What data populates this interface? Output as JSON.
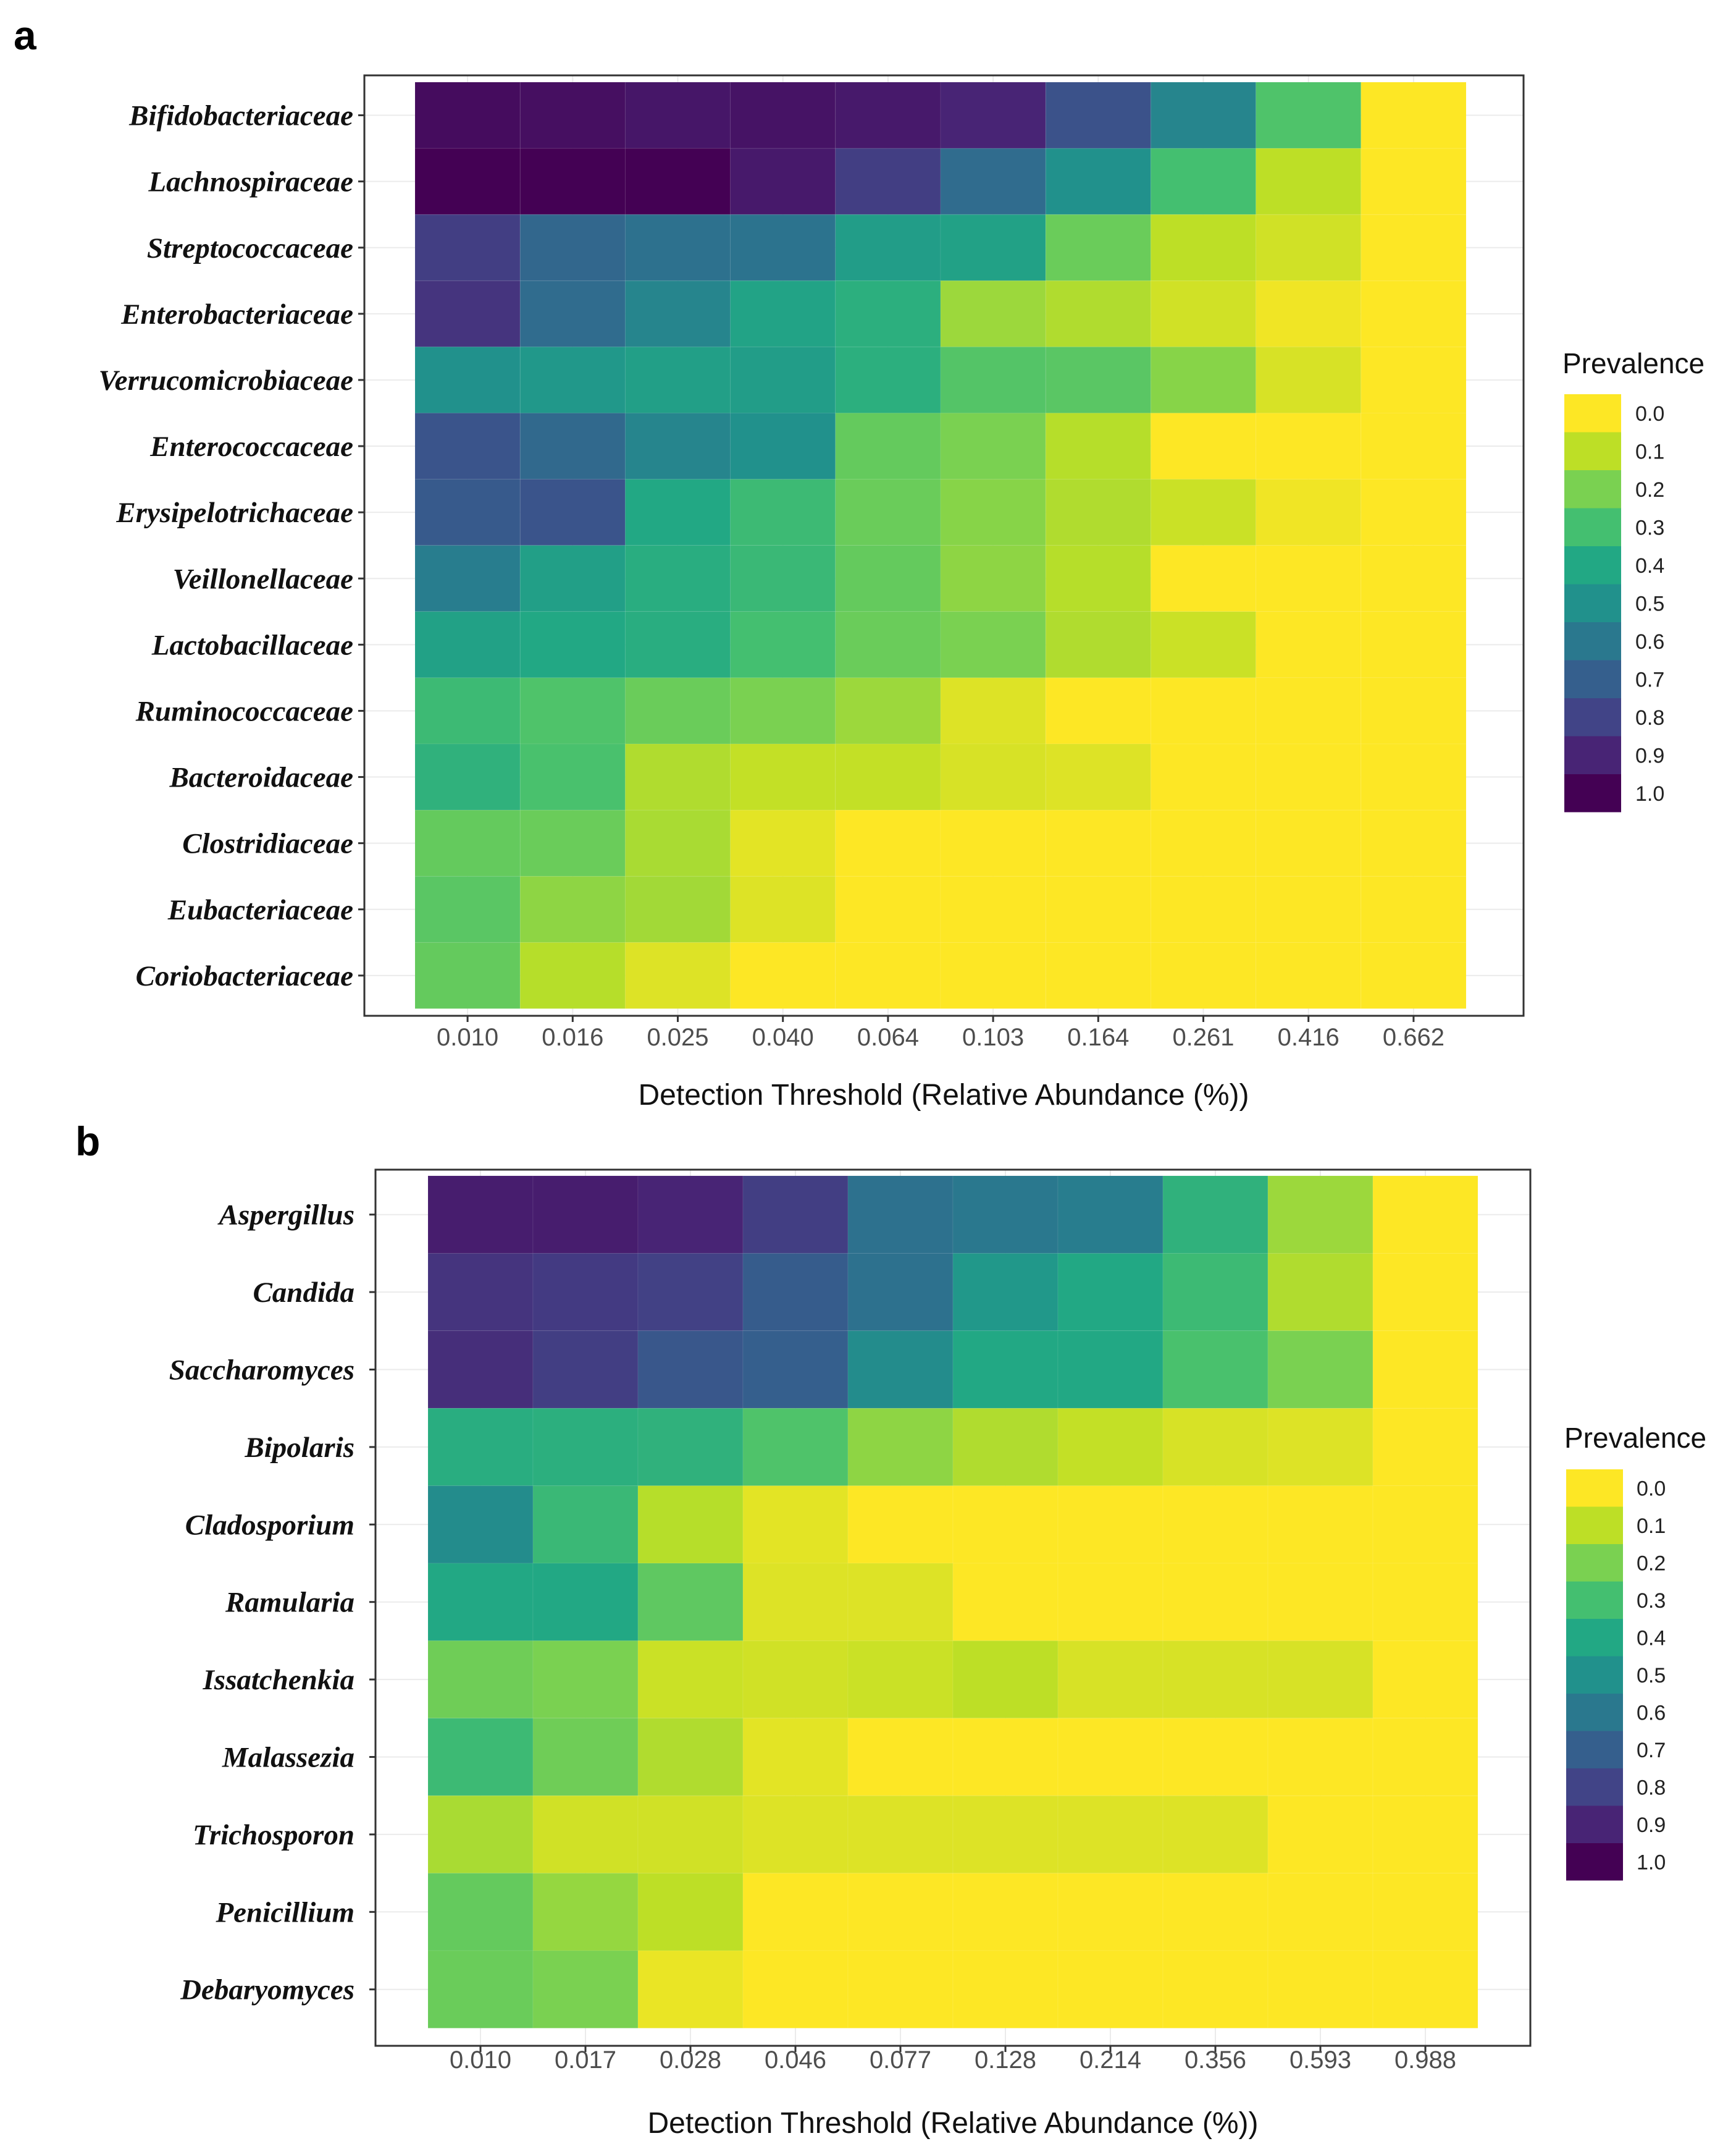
{
  "chart_data": [
    {
      "panel": "a",
      "type": "heatmap",
      "xlabel": "Detection Threshold (Relative Abundance (%))",
      "x_ticks": [
        "0.010",
        "0.016",
        "0.025",
        "0.040",
        "0.064",
        "0.103",
        "0.164",
        "0.261",
        "0.416",
        "0.662"
      ],
      "rows": [
        "Bifidobacteriaceae",
        "Lachnospiraceae",
        "Streptococcaceae",
        "Enterobacteriaceae",
        "Verrucomicrobiaceae",
        "Enterococcaceae",
        "Erysipelotrichaceae",
        "Veillonellaceae",
        "Lactobacillaceae",
        "Ruminococcaceae",
        "Bacteroidaceae",
        "Clostridiaceae",
        "Eubacteriaceae",
        "Coriobacteriaceae"
      ],
      "values": [
        [
          0.97,
          0.96,
          0.94,
          0.95,
          0.93,
          0.9,
          0.75,
          0.55,
          0.28,
          0.0
        ],
        [
          1.0,
          1.0,
          1.0,
          0.93,
          0.82,
          0.65,
          0.5,
          0.3,
          0.1,
          0.0
        ],
        [
          0.82,
          0.67,
          0.63,
          0.62,
          0.45,
          0.43,
          0.23,
          0.1,
          0.07,
          0.0
        ],
        [
          0.85,
          0.65,
          0.55,
          0.42,
          0.37,
          0.15,
          0.12,
          0.07,
          0.02,
          0.0
        ],
        [
          0.5,
          0.47,
          0.44,
          0.45,
          0.37,
          0.27,
          0.26,
          0.18,
          0.06,
          0.0
        ],
        [
          0.74,
          0.66,
          0.55,
          0.5,
          0.24,
          0.2,
          0.11,
          0.0,
          0.0,
          0.0
        ],
        [
          0.72,
          0.74,
          0.4,
          0.32,
          0.23,
          0.18,
          0.12,
          0.08,
          0.02,
          0.0
        ],
        [
          0.58,
          0.44,
          0.38,
          0.33,
          0.24,
          0.17,
          0.11,
          0.0,
          0.0,
          0.0
        ],
        [
          0.43,
          0.4,
          0.38,
          0.3,
          0.23,
          0.2,
          0.12,
          0.08,
          0.0,
          0.0
        ],
        [
          0.32,
          0.28,
          0.23,
          0.2,
          0.15,
          0.05,
          0.0,
          0.0,
          0.0,
          0.0
        ],
        [
          0.36,
          0.29,
          0.12,
          0.09,
          0.09,
          0.06,
          0.05,
          0.0,
          0.0,
          0.0
        ],
        [
          0.24,
          0.23,
          0.13,
          0.04,
          0.0,
          0.0,
          0.0,
          0.0,
          0.0,
          0.0
        ],
        [
          0.26,
          0.17,
          0.14,
          0.05,
          0.0,
          0.0,
          0.0,
          0.0,
          0.0,
          0.0
        ],
        [
          0.24,
          0.11,
          0.05,
          0.0,
          0.0,
          0.0,
          0.0,
          0.0,
          0.0,
          0.0
        ]
      ],
      "legend": {
        "title": "Prevalence",
        "labels": [
          "0.0",
          "0.1",
          "0.2",
          "0.3",
          "0.4",
          "0.5",
          "0.6",
          "0.7",
          "0.8",
          "0.9",
          "1.0"
        ]
      }
    },
    {
      "panel": "b",
      "type": "heatmap",
      "xlabel": "Detection Threshold (Relative Abundance (%))",
      "x_ticks": [
        "0.010",
        "0.017",
        "0.028",
        "0.046",
        "0.077",
        "0.128",
        "0.214",
        "0.356",
        "0.593",
        "0.988"
      ],
      "rows": [
        "Aspergillus",
        "Candida",
        "Saccharomyces",
        "Bipolaris",
        "Cladosporium",
        "Ramularia",
        "Issatchenkia",
        "Malassezia",
        "Trichosporon",
        "Penicillium",
        "Debaryomyces"
      ],
      "values": [
        [
          0.92,
          0.92,
          0.9,
          0.82,
          0.63,
          0.6,
          0.58,
          0.36,
          0.15,
          0.0
        ],
        [
          0.85,
          0.83,
          0.81,
          0.71,
          0.63,
          0.47,
          0.4,
          0.32,
          0.12,
          0.0
        ],
        [
          0.87,
          0.82,
          0.73,
          0.7,
          0.52,
          0.4,
          0.4,
          0.29,
          0.2,
          0.0
        ],
        [
          0.38,
          0.37,
          0.36,
          0.28,
          0.17,
          0.12,
          0.09,
          0.06,
          0.05,
          0.0
        ],
        [
          0.52,
          0.33,
          0.11,
          0.04,
          0.0,
          0.0,
          0.0,
          0.0,
          0.0,
          0.0
        ],
        [
          0.4,
          0.4,
          0.25,
          0.05,
          0.05,
          0.0,
          0.0,
          0.0,
          0.0,
          0.0
        ],
        [
          0.22,
          0.2,
          0.08,
          0.07,
          0.08,
          0.1,
          0.06,
          0.06,
          0.06,
          0.0
        ],
        [
          0.32,
          0.22,
          0.12,
          0.04,
          0.0,
          0.0,
          0.0,
          0.0,
          0.0,
          0.0
        ],
        [
          0.13,
          0.07,
          0.07,
          0.05,
          0.05,
          0.05,
          0.05,
          0.05,
          0.0,
          0.0
        ],
        [
          0.24,
          0.16,
          0.1,
          0.0,
          0.0,
          0.0,
          0.0,
          0.0,
          0.0,
          0.0
        ],
        [
          0.23,
          0.2,
          0.03,
          0.0,
          0.0,
          0.0,
          0.0,
          0.0,
          0.0,
          0.0
        ]
      ],
      "legend": {
        "title": "Prevalence",
        "labels": [
          "0.0",
          "0.1",
          "0.2",
          "0.3",
          "0.4",
          "0.5",
          "0.6",
          "0.7",
          "0.8",
          "0.9",
          "1.0"
        ]
      }
    }
  ],
  "colors": {
    "legend": [
      "#fde725",
      "#bddf26",
      "#7ad151",
      "#44bf70",
      "#22a884",
      "#21918c",
      "#2a788e",
      "#355f8d",
      "#414487",
      "#482475",
      "#440154"
    ]
  }
}
